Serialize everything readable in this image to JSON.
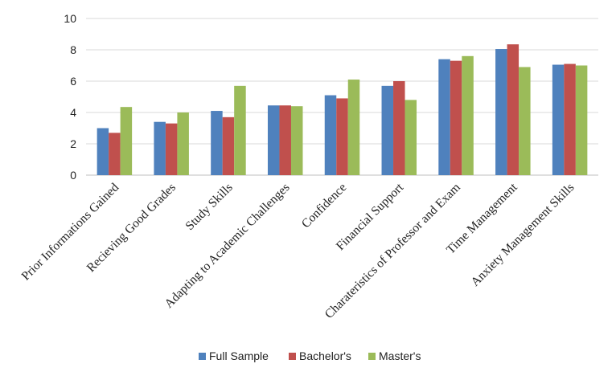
{
  "chart_data": {
    "type": "bar",
    "categories": [
      "Prior Informations Gained",
      "Recieving Good Grades",
      "Study Skills",
      "Adapting to Academic Challenges",
      "Confidence",
      "Financial Support",
      "Charateristics of Professor and Exam",
      "Time Management",
      "Anxiety Management Skills"
    ],
    "series": [
      {
        "name": "Full Sample",
        "color": "#4f81bd",
        "values": [
          3.0,
          3.4,
          4.1,
          4.45,
          5.1,
          5.7,
          7.4,
          8.05,
          7.05
        ]
      },
      {
        "name": "Bachelor's",
        "color": "#c0504d",
        "values": [
          2.7,
          3.3,
          3.7,
          4.45,
          4.9,
          6.0,
          7.3,
          8.35,
          7.1
        ]
      },
      {
        "name": "Master's",
        "color": "#9bbb59",
        "values": [
          4.35,
          4.0,
          5.7,
          4.4,
          6.1,
          4.8,
          7.6,
          6.9,
          7.0
        ]
      }
    ],
    "yticks": [
      0,
      2,
      4,
      6,
      8,
      10
    ],
    "ylim": [
      0,
      10
    ],
    "grid": true,
    "legend_position": "bottom"
  }
}
